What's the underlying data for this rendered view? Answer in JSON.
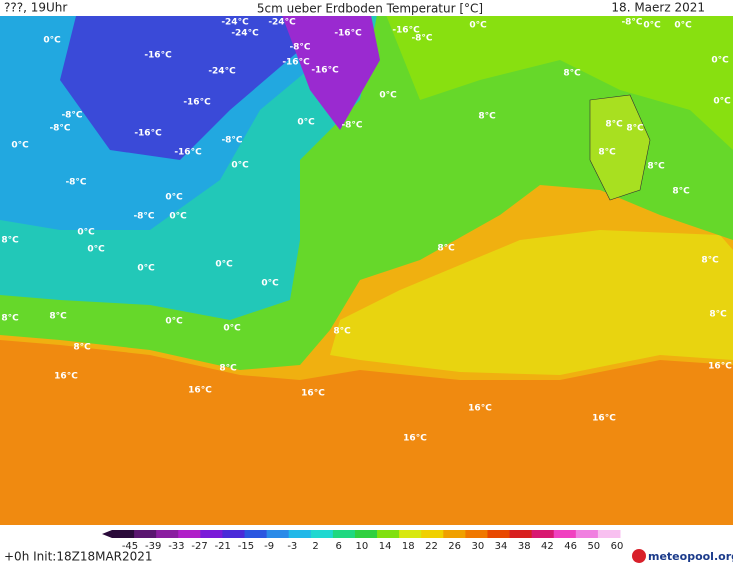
{
  "header": {
    "left": "???, 19Uhr",
    "title": "5cm ueber Erdboden Temperatur [°C]",
    "date": "18. Maerz 2021"
  },
  "footer": {
    "init": "+0h Init:18Z18MAR2021",
    "logo": "meteopool.org"
  },
  "colorbar": {
    "ticks": [
      -45,
      -39,
      -33,
      -27,
      -21,
      -15,
      -9,
      -3,
      2,
      6,
      10,
      14,
      18,
      22,
      26,
      30,
      34,
      38,
      42,
      46,
      50,
      60
    ],
    "colors": [
      "#2a0a3a",
      "#5a1670",
      "#8a1ea0",
      "#b020c8",
      "#7a1ad8",
      "#4a2ad8",
      "#2a56e0",
      "#2a8ae8",
      "#22b8e8",
      "#20d8d0",
      "#20d880",
      "#30d040",
      "#80e010",
      "#d8e810",
      "#f0d000",
      "#f0a000",
      "#f07800",
      "#e84800",
      "#d82020",
      "#d81870",
      "#f040c0",
      "#f080e0",
      "#f8c0f0"
    ]
  },
  "labels": [
    "0°C",
    "-24°C",
    "-24°C",
    "-24°C",
    "-16°C",
    "-16°C",
    "-8°C",
    "0°C",
    "-8°C",
    "0°C",
    "0°C",
    "-16°C",
    "-24°C",
    "-8°C",
    "-16°C",
    "-16°C",
    "0°C",
    "8°C",
    "0°C",
    "-16°C",
    "-8°C",
    "0°C",
    "0°C",
    "-8°C",
    "8°C",
    "8°C",
    "8°C",
    "-16°C",
    "-8°C",
    "-8°C",
    "0°C",
    "-16°C",
    "8°C",
    "0°C",
    "8°C",
    "-8°C",
    "8°C",
    "0°C",
    "-8°C",
    "0°C",
    "0°C",
    "8°C",
    "0°C",
    "8°C",
    "0°C",
    "8°C",
    "0°C",
    "0°C",
    "8°C",
    "8°C",
    "0°C",
    "0°C",
    "8°C",
    "8°C",
    "8°C",
    "16°C",
    "8°C",
    "16°C",
    "16°C",
    "16°C",
    "16°C",
    "16°C",
    "16°C"
  ]
}
